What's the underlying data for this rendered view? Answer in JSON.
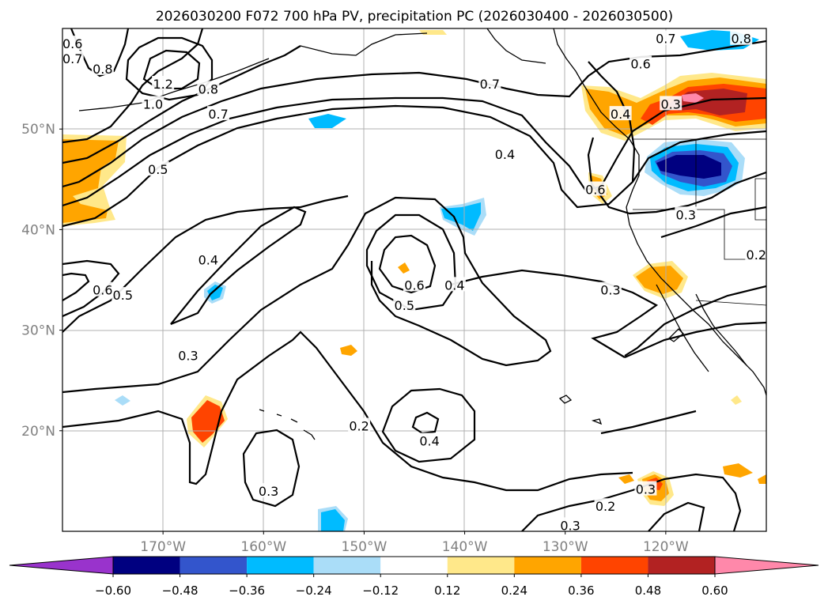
{
  "chart_data": {
    "type": "contour_map",
    "title": "2026030200 F072 700 hPa PV, precipitation PC (2026030400 - 2026030500)",
    "xlabel": "",
    "ylabel": "",
    "lon_range": [
      -180,
      -110
    ],
    "lat_range": [
      10,
      60
    ],
    "x_ticks": [
      {
        "value": -170,
        "label": "170°W"
      },
      {
        "value": -160,
        "label": "160°W"
      },
      {
        "value": -150,
        "label": "150°W"
      },
      {
        "value": -140,
        "label": "140°W"
      },
      {
        "value": -130,
        "label": "130°W"
      },
      {
        "value": -120,
        "label": "120°W"
      }
    ],
    "y_ticks": [
      {
        "value": 20,
        "label": "20°N"
      },
      {
        "value": 30,
        "label": "30°N"
      },
      {
        "value": 40,
        "label": "40°N"
      },
      {
        "value": 50,
        "label": "50°N"
      }
    ],
    "grid": true,
    "colorbar": {
      "orientation": "horizontal",
      "extend": "both",
      "bounds": [
        -0.6,
        -0.48,
        -0.36,
        -0.24,
        -0.12,
        0.12,
        0.24,
        0.36,
        0.48,
        0.6
      ],
      "tick_labels": [
        "−0.60",
        "−0.48",
        "−0.36",
        "−0.24",
        "−0.12",
        "0.12",
        "0.24",
        "0.36",
        "0.48",
        "0.60"
      ],
      "colors": [
        "#9933cc",
        "#000080",
        "#3355cc",
        "#00bbff",
        "#aaddf8",
        "#ffffff",
        "#ffe88a",
        "#ffa500",
        "#ff4400",
        "#b22222",
        "#ff88aa"
      ]
    },
    "pv_contour_labels": [
      {
        "text": "0.8",
        "lon": -176,
        "lat": 56
      },
      {
        "text": "0.7",
        "lon": -179,
        "lat": 57
      },
      {
        "text": "0.6",
        "lon": -179,
        "lat": 58.5
      },
      {
        "text": "1.2",
        "lon": -170,
        "lat": 54.5
      },
      {
        "text": "1.0",
        "lon": -171,
        "lat": 52.5
      },
      {
        "text": "0.8",
        "lon": -165.5,
        "lat": 54
      },
      {
        "text": "0.7",
        "lon": -164.5,
        "lat": 51.5
      },
      {
        "text": "0.5",
        "lon": -170.5,
        "lat": 46
      },
      {
        "text": "0.4",
        "lon": -136,
        "lat": 47.5
      },
      {
        "text": "0.7",
        "lon": -137.5,
        "lat": 54.5
      },
      {
        "text": "0.6",
        "lon": -122.5,
        "lat": 56.5
      },
      {
        "text": "0.7",
        "lon": -120,
        "lat": 59
      },
      {
        "text": "0.8",
        "lon": -112.5,
        "lat": 59
      },
      {
        "text": "0.3",
        "lon": -119.5,
        "lat": 52.5
      },
      {
        "text": "0.4",
        "lon": -124.5,
        "lat": 51.5
      },
      {
        "text": "0.6",
        "lon": -127,
        "lat": 44
      },
      {
        "text": "0.3",
        "lon": -118,
        "lat": 41.5
      },
      {
        "text": "0.2",
        "lon": -111,
        "lat": 37.5
      },
      {
        "text": "0.4",
        "lon": -165.5,
        "lat": 37
      },
      {
        "text": "0.6",
        "lon": -176,
        "lat": 34
      },
      {
        "text": "0.5",
        "lon": -174,
        "lat": 33.5
      },
      {
        "text": "0.6",
        "lon": -145,
        "lat": 34.5
      },
      {
        "text": "0.5",
        "lon": -146,
        "lat": 32.5
      },
      {
        "text": "0.4",
        "lon": -141,
        "lat": 34.5
      },
      {
        "text": "0.3",
        "lon": -125.5,
        "lat": 34
      },
      {
        "text": "0.3",
        "lon": -167.5,
        "lat": 27.5
      },
      {
        "text": "0.2",
        "lon": -150.5,
        "lat": 20.5
      },
      {
        "text": "0.4",
        "lon": -143.5,
        "lat": 19
      },
      {
        "text": "0.3",
        "lon": -159.5,
        "lat": 14
      },
      {
        "text": "0.2",
        "lon": -126,
        "lat": 12.5
      },
      {
        "text": "0.3",
        "lon": -122,
        "lat": 14.2
      },
      {
        "text": "0.3",
        "lon": -129.5,
        "lat": 10.6
      }
    ],
    "precip_anomalies": [
      {
        "level": 0.24,
        "lon": -176.5,
        "lat": 46.5
      },
      {
        "level": 0.24,
        "lon": -178,
        "lat": 41.5
      },
      {
        "level": 0.48,
        "lon": -120.5,
        "lat": 52
      },
      {
        "level": 0.6,
        "lon": -120.5,
        "lat": 53.5
      },
      {
        "level": 0.36,
        "lon": -126,
        "lat": 52
      },
      {
        "level": 0.24,
        "lon": -127,
        "lat": 44.5
      },
      {
        "level": -0.6,
        "lon": -118,
        "lat": 46
      },
      {
        "level": -0.36,
        "lon": -121,
        "lat": 59
      },
      {
        "level": -0.36,
        "lon": -154,
        "lat": 50.5
      },
      {
        "level": -0.36,
        "lon": -142,
        "lat": 41
      },
      {
        "level": -0.36,
        "lon": -165,
        "lat": 34.5
      },
      {
        "level": 0.24,
        "lon": -121,
        "lat": 35.5
      },
      {
        "level": 0.24,
        "lon": -152,
        "lat": 28
      },
      {
        "level": 0.12,
        "lon": -146,
        "lat": 36
      },
      {
        "level": -0.24,
        "lon": -175.5,
        "lat": 23
      },
      {
        "level": 0.36,
        "lon": -165.5,
        "lat": 21
      },
      {
        "level": -0.36,
        "lon": -153,
        "lat": 11
      },
      {
        "level": 0.36,
        "lon": -122,
        "lat": 14.5
      },
      {
        "level": 0.24,
        "lon": -125.5,
        "lat": 15
      },
      {
        "level": 0.24,
        "lon": -115,
        "lat": 15.8
      },
      {
        "level": 0.24,
        "lon": -111,
        "lat": 15
      },
      {
        "level": 0.12,
        "lon": -113,
        "lat": 23
      },
      {
        "level": 0.12,
        "lon": -145.5,
        "lat": 59.5
      }
    ]
  }
}
